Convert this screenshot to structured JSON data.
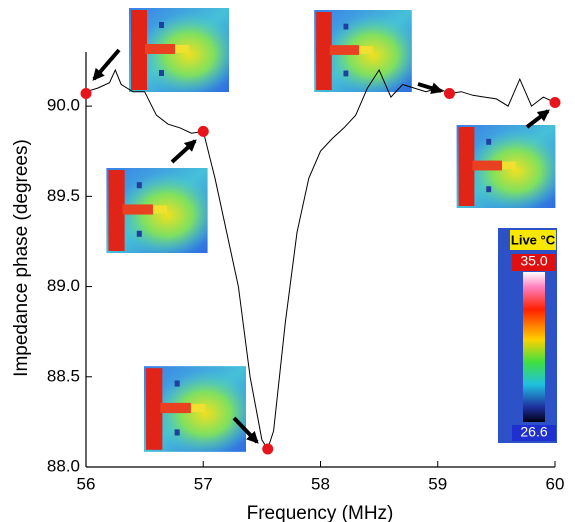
{
  "chart_data": {
    "type": "line",
    "x_label": "Frequency (MHz)",
    "y_label": "Impedance phase (degrees)",
    "xlim": [
      56,
      60
    ],
    "xticks": [
      56,
      57,
      58,
      59,
      60
    ],
    "ylim": [
      88,
      90.3
    ],
    "yticks": [
      {
        "value": 88,
        "label": "88.0"
      },
      88.5,
      {
        "value": 89,
        "label": "89.0"
      },
      89.5,
      {
        "value": 90,
        "label": "90.0"
      }
    ],
    "x": [
      56.0,
      56.1,
      56.2,
      56.25,
      56.3,
      56.4,
      56.5,
      56.6,
      56.7,
      56.8,
      56.9,
      57.0,
      57.1,
      57.2,
      57.3,
      57.4,
      57.5,
      57.55,
      57.6,
      57.7,
      57.8,
      57.9,
      58.0,
      58.1,
      58.2,
      58.3,
      58.4,
      58.5,
      58.6,
      58.7,
      58.8,
      58.9,
      59.0,
      59.1,
      59.2,
      59.3,
      59.4,
      59.5,
      59.6,
      59.7,
      59.8,
      59.9,
      60.0
    ],
    "values": [
      90.08,
      90.1,
      90.13,
      90.2,
      90.12,
      90.08,
      90.08,
      89.95,
      89.9,
      89.88,
      89.85,
      89.86,
      89.6,
      89.3,
      89.0,
      88.5,
      88.15,
      88.1,
      88.2,
      88.8,
      89.3,
      89.6,
      89.75,
      89.82,
      89.88,
      89.95,
      90.1,
      90.2,
      90.05,
      90.12,
      90.1,
      90.08,
      90.1,
      90.07,
      90.08,
      90.06,
      90.05,
      90.04,
      90.0,
      90.15,
      90.0,
      90.05,
      90.02
    ],
    "color": "#000000",
    "markers": {
      "x": [
        56.0,
        57.0,
        57.55,
        59.1,
        60.0
      ],
      "values": [
        90.07,
        89.86,
        88.1,
        90.07,
        90.02
      ],
      "color": "#e8141c"
    },
    "colorbar": {
      "title": "Live °C",
      "ticks": [
        {
          "value": 35,
          "label": "35.0"
        },
        26.6
      ]
    }
  }
}
